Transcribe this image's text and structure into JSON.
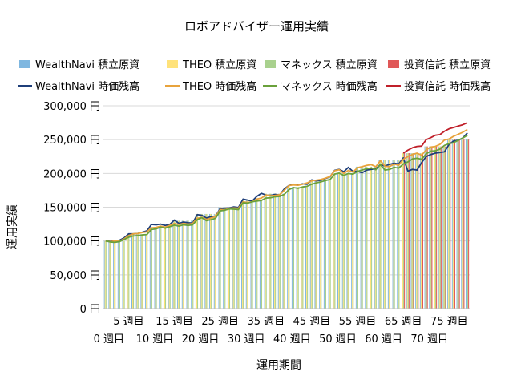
{
  "chart_data": {
    "type": "bar",
    "title": "ロボアドバイザー運用実績",
    "xlabel": "運用期間",
    "ylabel": "運用実績",
    "ylim": [
      0,
      300000
    ],
    "y_ticks": [
      "0 円",
      "50,000 円",
      "100,000 円",
      "150,000 円",
      "200,000 円",
      "250,000 円",
      "300,000 円"
    ],
    "x_tick_labels_row1": [
      "5 週目",
      "15 週目",
      "25 週目",
      "35 週目",
      "45 週目",
      "55 週目",
      "65 週目",
      "75 週目"
    ],
    "x_tick_labels_row2": [
      "0 週目",
      "10 週目",
      "20 週目",
      "30 週目",
      "40 週目",
      "50 週目",
      "60 週目",
      "70 週目"
    ],
    "x_tick_weeks_row1": [
      5,
      15,
      25,
      35,
      45,
      55,
      65,
      75
    ],
    "x_tick_weeks_row2": [
      0,
      10,
      20,
      30,
      40,
      50,
      60,
      70
    ],
    "grid": "horizontal",
    "legend_position": "top",
    "weeks": [
      0,
      1,
      2,
      3,
      4,
      5,
      6,
      7,
      8,
      9,
      10,
      11,
      12,
      13,
      14,
      15,
      16,
      17,
      18,
      19,
      20,
      21,
      22,
      23,
      24,
      25,
      26,
      27,
      28,
      29,
      30,
      31,
      32,
      33,
      34,
      35,
      36,
      37,
      38,
      39,
      40,
      41,
      42,
      43,
      44,
      45,
      46,
      47,
      48,
      49,
      50,
      51,
      52,
      53,
      54,
      55,
      56,
      57,
      58,
      59,
      60,
      61,
      62,
      63,
      64,
      65,
      66,
      67,
      68,
      69,
      70,
      71,
      72,
      73,
      74,
      75,
      76,
      77,
      78,
      79
    ],
    "series": [
      {
        "name": "WealthNavi 積立原資",
        "kind": "bar",
        "color": "#7fb7e0",
        "values": [
          100000,
          100000,
          100000,
          100000,
          100000,
          110000,
          110000,
          110000,
          110000,
          110000,
          120000,
          120000,
          120000,
          120000,
          120000,
          130000,
          130000,
          130000,
          130000,
          130000,
          140000,
          140000,
          140000,
          140000,
          140000,
          150000,
          150000,
          150000,
          150000,
          150000,
          160000,
          160000,
          160000,
          160000,
          160000,
          170000,
          170000,
          170000,
          170000,
          170000,
          180000,
          180000,
          180000,
          180000,
          180000,
          190000,
          190000,
          190000,
          190000,
          190000,
          200000,
          200000,
          200000,
          200000,
          200000,
          210000,
          210000,
          210000,
          210000,
          210000,
          220000,
          220000,
          220000,
          220000,
          220000,
          230000,
          230000,
          230000,
          230000,
          230000,
          240000,
          240000,
          240000,
          240000,
          240000,
          250000,
          250000,
          250000,
          250000,
          250000
        ]
      },
      {
        "name": "THEO 積立原資",
        "kind": "bar",
        "color": "#ffe27a",
        "values": [
          100000,
          100000,
          100000,
          100000,
          100000,
          110000,
          110000,
          110000,
          110000,
          110000,
          120000,
          120000,
          120000,
          120000,
          120000,
          130000,
          130000,
          130000,
          130000,
          130000,
          140000,
          140000,
          140000,
          140000,
          140000,
          150000,
          150000,
          150000,
          150000,
          150000,
          160000,
          160000,
          160000,
          160000,
          160000,
          170000,
          170000,
          170000,
          170000,
          170000,
          180000,
          180000,
          180000,
          180000,
          180000,
          190000,
          190000,
          190000,
          190000,
          190000,
          200000,
          200000,
          200000,
          200000,
          200000,
          210000,
          210000,
          210000,
          210000,
          210000,
          220000,
          220000,
          220000,
          220000,
          220000,
          230000,
          230000,
          230000,
          230000,
          230000,
          240000,
          240000,
          240000,
          240000,
          240000,
          250000,
          250000,
          250000,
          250000,
          250000
        ]
      },
      {
        "name": "マネックス 積立原資",
        "kind": "bar",
        "color": "#a9d18e",
        "values": [
          100000,
          100000,
          100000,
          100000,
          100000,
          110000,
          110000,
          110000,
          110000,
          110000,
          120000,
          120000,
          120000,
          120000,
          120000,
          130000,
          130000,
          130000,
          130000,
          130000,
          140000,
          140000,
          140000,
          140000,
          140000,
          150000,
          150000,
          150000,
          150000,
          150000,
          160000,
          160000,
          160000,
          160000,
          160000,
          170000,
          170000,
          170000,
          170000,
          170000,
          180000,
          180000,
          180000,
          180000,
          180000,
          190000,
          190000,
          190000,
          190000,
          190000,
          200000,
          200000,
          200000,
          200000,
          200000,
          210000,
          210000,
          210000,
          210000,
          210000,
          220000,
          220000,
          220000,
          220000,
          220000,
          230000,
          230000,
          230000,
          230000,
          230000,
          240000,
          240000,
          240000,
          240000,
          240000,
          250000,
          250000,
          250000,
          250000,
          250000
        ]
      },
      {
        "name": "投資信託 積立原資",
        "kind": "bar",
        "color": "#e05858",
        "values": [
          null,
          null,
          null,
          null,
          null,
          null,
          null,
          null,
          null,
          null,
          null,
          null,
          null,
          null,
          null,
          null,
          null,
          null,
          null,
          null,
          null,
          null,
          null,
          null,
          null,
          null,
          null,
          null,
          null,
          null,
          null,
          null,
          null,
          null,
          null,
          null,
          null,
          null,
          null,
          null,
          null,
          null,
          null,
          null,
          null,
          null,
          null,
          null,
          null,
          null,
          null,
          null,
          null,
          null,
          null,
          null,
          null,
          null,
          null,
          null,
          null,
          null,
          null,
          null,
          null,
          230000,
          230000,
          230000,
          230000,
          230000,
          240000,
          240000,
          240000,
          240000,
          240000,
          250000,
          250000,
          250000,
          250000,
          250000
        ]
      },
      {
        "name": "WealthNavi 時価残高",
        "kind": "line",
        "color": "#1f3f7a",
        "values": [
          100000,
          99500,
          100500,
          101000,
          104500,
          110500,
          110500,
          111000,
          113000,
          115000,
          124500,
          124000,
          125000,
          123000,
          124500,
          131000,
          126000,
          128000,
          127000,
          126500,
          139000,
          138000,
          134000,
          136000,
          136500,
          148000,
          148500,
          149000,
          150500,
          149500,
          162000,
          160500,
          159000,
          166000,
          170500,
          168000,
          167500,
          169000,
          168000,
          177000,
          182000,
          184000,
          183000,
          184500,
          184000,
          190500,
          189000,
          190000,
          192500,
          195000,
          204500,
          206000,
          202500,
          209000,
          203000,
          203000,
          201000,
          205000,
          206000,
          207000,
          213000,
          211000,
          213500,
          215000,
          214000,
          223000,
          203500,
          206000,
          205000,
          216000,
          225000,
          228000,
          230000,
          231000,
          232000,
          243000,
          248000,
          249000,
          252500,
          260000
        ]
      },
      {
        "name": "THEO 時価残高",
        "kind": "line",
        "color": "#e8a33c",
        "values": [
          100000,
          99000,
          100000,
          100000,
          103000,
          108000,
          110500,
          111000,
          112500,
          113500,
          119500,
          120000,
          122000,
          120500,
          123000,
          126000,
          124500,
          126000,
          125000,
          126000,
          133500,
          135000,
          132000,
          134000,
          136000,
          146500,
          146000,
          148500,
          149000,
          148500,
          158000,
          157000,
          158000,
          162000,
          163500,
          168000,
          167000,
          167500,
          168500,
          175000,
          182000,
          183000,
          182500,
          184000,
          186000,
          189000,
          190000,
          191000,
          193000,
          195500,
          204000,
          205500,
          200000,
          204500,
          202000,
          208500,
          210000,
          212000,
          213000,
          210000,
          219000,
          210500,
          210000,
          214000,
          212000,
          221000,
          225000,
          228000,
          230000,
          227000,
          235000,
          239000,
          240000,
          243000,
          249500,
          251000,
          255000,
          258000,
          261000,
          265000
        ]
      },
      {
        "name": "マネックス 時価残高",
        "kind": "line",
        "color": "#6aa13b",
        "values": [
          100000,
          98500,
          98000,
          99000,
          102000,
          105500,
          107500,
          108000,
          109000,
          109500,
          117000,
          118000,
          120500,
          119000,
          121000,
          123500,
          122000,
          124000,
          123000,
          124000,
          131500,
          134500,
          130000,
          131500,
          133500,
          144500,
          145500,
          147500,
          147000,
          146500,
          156500,
          156000,
          158000,
          159000,
          160000,
          163500,
          164000,
          165500,
          166000,
          169000,
          176000,
          179000,
          178000,
          180000,
          181000,
          184000,
          186000,
          187500,
          189500,
          191000,
          199000,
          200500,
          197000,
          200000,
          199000,
          203000,
          205000,
          207000,
          208000,
          205500,
          213000,
          205000,
          206000,
          209000,
          208000,
          214000,
          217000,
          221500,
          222500,
          221000,
          229000,
          233000,
          233500,
          236000,
          241500,
          244000,
          245500,
          249000,
          252500,
          256500
        ]
      },
      {
        "name": "投資信託 時価残高",
        "kind": "line",
        "color": "#c0202a",
        "values": [
          null,
          null,
          null,
          null,
          null,
          null,
          null,
          null,
          null,
          null,
          null,
          null,
          null,
          null,
          null,
          null,
          null,
          null,
          null,
          null,
          null,
          null,
          null,
          null,
          null,
          null,
          null,
          null,
          null,
          null,
          null,
          null,
          null,
          null,
          null,
          null,
          null,
          null,
          null,
          null,
          null,
          null,
          null,
          null,
          null,
          null,
          null,
          null,
          null,
          null,
          null,
          null,
          null,
          null,
          null,
          null,
          null,
          null,
          null,
          null,
          null,
          null,
          null,
          null,
          null,
          230000,
          234500,
          238000,
          240000,
          240500,
          250000,
          253000,
          256500,
          257500,
          262500,
          266000,
          268000,
          270000,
          272000,
          275000
        ]
      }
    ]
  }
}
